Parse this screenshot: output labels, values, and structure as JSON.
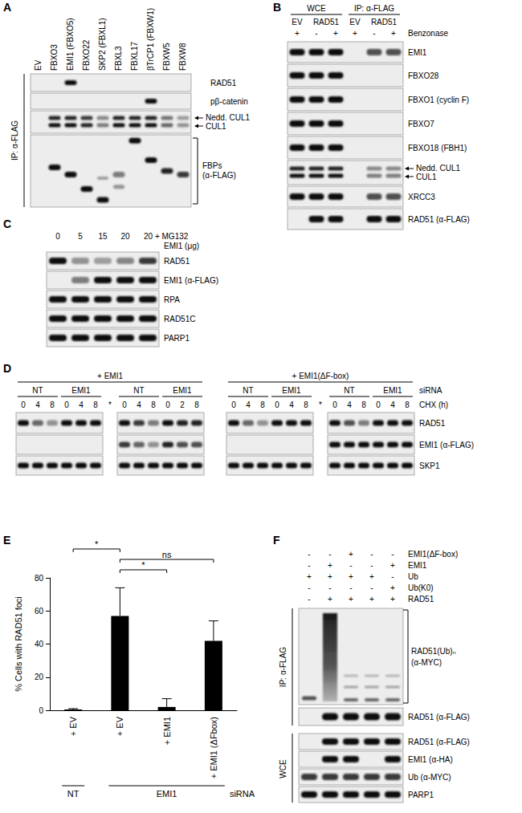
{
  "panels": {
    "A": {
      "label": "A",
      "lanes": [
        "EV",
        "FBXO3",
        "EMI1 (FBXO5)",
        "FBXO22",
        "SKP2 (FBXL1)",
        "FBXL3",
        "FBXL17",
        "βTrCP1 (FBXW1)",
        "FBXW5",
        "FBXW8"
      ],
      "side_label": "IP: α-FLAG",
      "rows": [
        "RAD51",
        "pβ-catenin"
      ],
      "doublet": [
        "Nedd. CUL1",
        "CUL1"
      ],
      "bracket": [
        "FBPs",
        "(α-FLAG)"
      ]
    },
    "B": {
      "label": "B",
      "groups": [
        "WCE",
        "IP: α-FLAG"
      ],
      "lanes": [
        "EV",
        "RAD51",
        "EV",
        "RAD51"
      ],
      "treatment": {
        "name": "Benzonase",
        "signs": [
          "+",
          "-",
          "+",
          "+",
          "-",
          "+"
        ]
      },
      "rows": [
        "EMI1",
        "FBXO28",
        "FBXO1 (cyclin F)",
        "FBXO7",
        "FBXO18 (FBH1)",
        [
          "Nedd. CUL1",
          "CUL1"
        ],
        "XRCC3",
        "RAD51 (α-FLAG)"
      ]
    },
    "C": {
      "label": "C",
      "doses": [
        "0",
        "5",
        "15",
        "20",
        "20 + MG132"
      ],
      "dose_title": "EMI1 (μg)",
      "rows": [
        "RAD51",
        "EMI1 (α-FLAG)",
        "RPA",
        "RAD51C",
        "PARP1"
      ]
    },
    "D": {
      "label": "D",
      "halves": [
        "+ EMI1",
        "+ EMI1(ΔF-box)"
      ],
      "sirna": [
        "NT",
        "EMI1",
        "NT",
        "EMI1"
      ],
      "sirna_title": "siRNA",
      "chx": [
        [
          "0",
          "4",
          "8",
          "0",
          "4",
          "8",
          "*",
          "0",
          "4",
          "8",
          "0",
          "2",
          "8"
        ],
        [
          "0",
          "4",
          "8",
          "0",
          "4",
          "8",
          "*",
          "0",
          "4",
          "8",
          "0",
          "4",
          "8"
        ]
      ],
      "chx_title": "CHX (h)",
      "rows": [
        "RAD51",
        "EMI1 (α-FLAG)",
        "SKP1"
      ]
    },
    "F": {
      "label": "F",
      "conditions": [
        {
          "name": "EMI1(ΔF-box)",
          "signs": [
            "-",
            "-",
            "+",
            "-",
            "-"
          ]
        },
        {
          "name": "EMI1",
          "signs": [
            "-",
            "+",
            "-",
            "-",
            "+"
          ]
        },
        {
          "name": "Ub",
          "signs": [
            "+",
            "+",
            "+",
            "+",
            "-"
          ]
        },
        {
          "name": "Ub(K0)",
          "signs": [
            "-",
            "-",
            "-",
            "-",
            "+"
          ]
        },
        {
          "name": "RAD51",
          "signs": [
            "-",
            "+",
            "+",
            "+",
            "+"
          ]
        }
      ],
      "ip_label": "IP: α-FLAG",
      "smear": [
        "RAD51(Ub)ₙ",
        "(α-MYC)"
      ],
      "ip_rows": [
        "RAD51 (α-FLAG)"
      ],
      "wce_label": "WCE",
      "wce_rows": [
        "RAD51 (α-FLAG)",
        "EMI1 (α-HA)",
        "Ub (α-MYC)",
        "PARP1"
      ]
    }
  },
  "chart_data": {
    "panel": "E",
    "type": "bar",
    "y_label": "% Cells with RAD51 foci",
    "categories": [
      "+ EV",
      "+ EV",
      "+ EMI1",
      "+ EMI1 (ΔFbox)"
    ],
    "values": [
      0.5,
      57,
      2,
      42
    ],
    "errors": [
      0.5,
      17,
      5,
      12
    ],
    "color": "#000000",
    "ylim": [
      0,
      80
    ],
    "yticks": [
      0,
      20,
      40,
      60,
      80
    ],
    "grid": false,
    "groups": [
      "NT",
      "EMI1",
      "EMI1",
      "EMI1"
    ],
    "group_title": "siRNA",
    "significance": [
      {
        "from": 0,
        "to": 1,
        "label": "*"
      },
      {
        "from": 1,
        "to": 3,
        "label": "ns"
      },
      {
        "from": 1,
        "to": 2,
        "label": "*"
      }
    ]
  }
}
